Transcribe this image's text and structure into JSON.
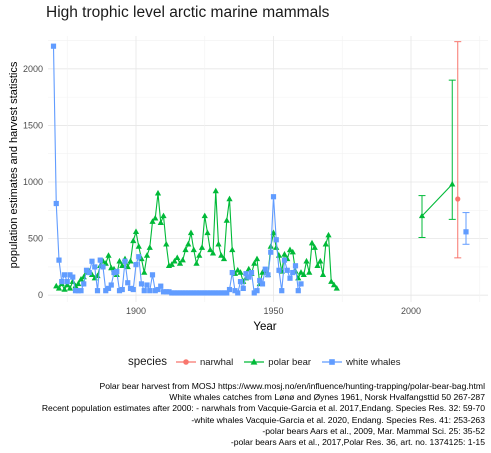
{
  "chart_data": {
    "type": "line",
    "title": "High trophic level arctic marine mammals",
    "xlabel": "Year",
    "ylabel": "population estimates and harvest statistics",
    "xlim": [
      1868,
      2028
    ],
    "ylim": [
      -60,
      2290
    ],
    "x_ticks": [
      1900,
      1950,
      2000
    ],
    "y_ticks": [
      0,
      500,
      1000,
      1500,
      2000
    ],
    "grid": true,
    "legend_title": "species",
    "legend_position": "bottom",
    "series": [
      {
        "name": "narwhal",
        "color": "#F8766D",
        "marker": "circle",
        "points": [
          [
            2017,
            850
          ]
        ],
        "error_bars": [
          {
            "x": 2017,
            "y": 850,
            "low": 330,
            "high": 2240
          }
        ]
      },
      {
        "name": "polar bear",
        "color": "#00BA38",
        "marker": "triangle",
        "x": [
          1871,
          1872,
          1873,
          1874,
          1875,
          1876,
          1877,
          1878,
          1879,
          1880,
          1881,
          1882,
          1883,
          1884,
          1885,
          1886,
          1887,
          1888,
          1889,
          1890,
          1891,
          1892,
          1893,
          1894,
          1895,
          1896,
          1897,
          1898,
          1899,
          1900,
          1901,
          1902,
          1903,
          1904,
          1905,
          1906,
          1907,
          1908,
          1909,
          1910,
          1911,
          1912,
          1913,
          1914,
          1915,
          1916,
          1917,
          1918,
          1919,
          1920,
          1921,
          1922,
          1923,
          1924,
          1925,
          1926,
          1927,
          1928,
          1929,
          1930,
          1931,
          1932,
          1933,
          1934,
          1935,
          1936,
          1937,
          1938,
          1939,
          1940,
          1941,
          1942,
          1943,
          1944,
          1945,
          1946,
          1947,
          1948,
          1949,
          1950,
          1951,
          1952,
          1953,
          1954,
          1955,
          1956,
          1957,
          1958,
          1959,
          1960,
          1961,
          1962,
          1963,
          1964,
          1965,
          1966,
          1967,
          1968,
          1969,
          1970,
          1971,
          1972,
          1973
        ],
        "y": [
          80,
          60,
          100,
          50,
          90,
          60,
          120,
          80,
          100,
          140,
          160,
          200,
          210,
          180,
          150,
          170,
          260,
          300,
          280,
          350,
          240,
          230,
          180,
          300,
          260,
          320,
          250,
          300,
          480,
          560,
          430,
          320,
          200,
          350,
          420,
          650,
          680,
          900,
          640,
          700,
          450,
          260,
          270,
          300,
          330,
          280,
          310,
          400,
          450,
          550,
          400,
          280,
          350,
          420,
          700,
          550,
          400,
          370,
          920,
          450,
          350,
          320,
          660,
          850,
          400,
          190,
          220,
          200,
          120,
          150,
          230,
          190,
          280,
          320,
          100,
          200,
          210,
          180,
          430,
          550,
          420,
          350,
          210,
          360,
          320,
          400,
          380,
          210,
          150,
          200,
          180,
          300,
          200,
          460,
          420,
          260,
          300,
          180,
          450,
          530,
          120,
          90,
          60
        ]
      },
      {
        "name": "polar bear",
        "color": "#00BA38",
        "marker": "triangle",
        "x": [
          2004,
          2015
        ],
        "y": [
          700,
          980
        ],
        "error_bars": [
          {
            "x": 2004,
            "y": 700,
            "low": 510,
            "high": 880
          },
          {
            "x": 2015,
            "y": 980,
            "low": 670,
            "high": 1900
          }
        ]
      },
      {
        "name": "white whales",
        "color": "#619CFF",
        "marker": "square",
        "x": [
          1870,
          1871,
          1872,
          1873,
          1874,
          1875,
          1876,
          1877,
          1878,
          1879,
          1880,
          1881,
          1882,
          1883,
          1884,
          1885,
          1886,
          1887,
          1888,
          1889,
          1890,
          1891,
          1892,
          1893,
          1894,
          1895,
          1896,
          1897,
          1898,
          1899,
          1900,
          1901,
          1902,
          1903,
          1904,
          1905,
          1906,
          1907,
          1908,
          1909,
          1910,
          1911,
          1912,
          1913,
          1914,
          1915,
          1916,
          1917,
          1918,
          1919,
          1920,
          1921,
          1922,
          1923,
          1924,
          1925,
          1926,
          1927,
          1928,
          1929,
          1930,
          1931,
          1932,
          1933,
          1934,
          1935,
          1936,
          1937,
          1938,
          1939,
          1940,
          1941,
          1942,
          1943,
          1944,
          1945,
          1946,
          1947,
          1948,
          1949,
          1950,
          1951,
          1952,
          1953,
          1954,
          1955,
          1956,
          1957,
          1958,
          1959,
          1960
        ],
        "y": [
          2200,
          810,
          310,
          120,
          180,
          120,
          180,
          160,
          40,
          40,
          40,
          100,
          220,
          200,
          300,
          250,
          40,
          310,
          250,
          40,
          60,
          90,
          200,
          210,
          40,
          50,
          300,
          110,
          60,
          50,
          270,
          340,
          100,
          40,
          90,
          40,
          180,
          40,
          50,
          80,
          30,
          30,
          30,
          20,
          20,
          20,
          20,
          20,
          20,
          20,
          20,
          20,
          20,
          20,
          20,
          20,
          20,
          20,
          20,
          20,
          20,
          20,
          20,
          20,
          50,
          200,
          40,
          20,
          120,
          60,
          190,
          160,
          200,
          20,
          40,
          130,
          100,
          230,
          180,
          380,
          870,
          490,
          220,
          40,
          310,
          220,
          150,
          200,
          260,
          40,
          100
        ]
      },
      {
        "name": "white whales",
        "color": "#619CFF",
        "marker": "square",
        "points": [
          [
            2020,
            560
          ]
        ],
        "error_bars": [
          {
            "x": 2020,
            "y": 560,
            "low": 450,
            "high": 730
          }
        ]
      }
    ]
  },
  "caption_lines": [
    "Polar bear harvest from MOSJ https://www.mosj.no/en/influence/hunting-trapping/polar-bear-bag.html",
    "White whales catches from Lønø and Øynes 1961, Norsk Hvalfangsttid 50 267-287",
    "Recent population estimates after 2000: - narwhals from Vacquie-Garcia et al. 2017,Endang. Species Res. 32: 59-70",
    "-white whales Vacquie-Garcia et al. 2020, Endang. Species Res. 41: 253-263",
    "-polar bears Aars et al., 2009, Mar. Mammal Sci. 25: 35-52",
    "-polar bears Aars et al., 2017,Polar Res. 36, art. no. 1374125: 1-15"
  ]
}
